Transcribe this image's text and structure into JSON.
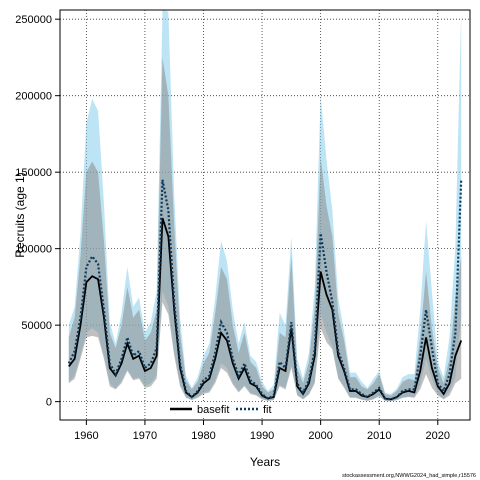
{
  "chart_data": {
    "type": "line",
    "title": "",
    "xlabel": "Years",
    "ylabel": "Recruits (age 1)",
    "xlim": [
      1955.5,
      2025.5
    ],
    "ylim": [
      -12000,
      256000
    ],
    "x_ticks": [
      1960,
      1970,
      1980,
      1990,
      2000,
      2010,
      2020
    ],
    "y_ticks": [
      0,
      50000,
      100000,
      150000,
      200000,
      250000
    ],
    "grid": true,
    "grid_style": "dotted",
    "legend_position": "bottom-center",
    "legend": [
      "basefit",
      "fit"
    ],
    "caption": "stockassessment.org,NWWG2024_had_simple,r15576",
    "colors": {
      "basefit_line": "#000000",
      "basefit_band": "#8c8c8c",
      "fit_line": "#0d3a5c",
      "fit_band": "#87ceeb"
    },
    "x": [
      1957,
      1958,
      1959,
      1960,
      1961,
      1962,
      1963,
      1964,
      1965,
      1966,
      1967,
      1968,
      1969,
      1970,
      1971,
      1972,
      1973,
      1974,
      1975,
      1976,
      1977,
      1978,
      1979,
      1980,
      1981,
      1982,
      1983,
      1984,
      1985,
      1986,
      1987,
      1988,
      1989,
      1990,
      1991,
      1992,
      1993,
      1994,
      1995,
      1996,
      1997,
      1998,
      1999,
      2000,
      2001,
      2002,
      2003,
      2004,
      2005,
      2006,
      2007,
      2008,
      2009,
      2010,
      2011,
      2012,
      2013,
      2014,
      2015,
      2016,
      2017,
      2018,
      2019,
      2020,
      2021,
      2022,
      2023,
      2024
    ],
    "series": [
      {
        "name": "basefit",
        "values": [
          23000,
          28000,
          50000,
          78000,
          82000,
          80000,
          55000,
          22000,
          17000,
          25000,
          38000,
          28000,
          30000,
          20000,
          22000,
          30000,
          120000,
          108000,
          60000,
          22000,
          6000,
          3000,
          6000,
          12000,
          15000,
          28000,
          45000,
          40000,
          25000,
          15000,
          22000,
          12000,
          10000,
          4000,
          2000,
          3000,
          22000,
          20000,
          48000,
          10000,
          5000,
          12000,
          30000,
          85000,
          70000,
          60000,
          30000,
          20000,
          7000,
          7000,
          4000,
          3000,
          5000,
          8000,
          2000,
          1500,
          3000,
          6000,
          7000,
          6000,
          20000,
          42000,
          22000,
          10000,
          5000,
          12000,
          30000,
          40000
        ],
        "lower": [
          12000,
          15000,
          28000,
          42000,
          43000,
          42000,
          28000,
          10000,
          8000,
          12000,
          20000,
          14000,
          15000,
          9000,
          10000,
          15000,
          65000,
          57000,
          30000,
          10000,
          2500,
          1000,
          2500,
          5000,
          6000,
          12000,
          22000,
          19000,
          11000,
          6000,
          10000,
          5000,
          4000,
          1500,
          500,
          1000,
          10000,
          8000,
          22000,
          4000,
          1500,
          4500,
          12000,
          48000,
          39000,
          34000,
          15000,
          9000,
          2500,
          2500,
          1200,
          500,
          1500,
          3500,
          500,
          200,
          1000,
          2500,
          3000,
          2500,
          8000,
          18000,
          9000,
          4000,
          1500,
          4000,
          12000,
          15000
        ],
        "upper": [
          42000,
          55000,
          95000,
          150000,
          157000,
          150000,
          105000,
          45000,
          35000,
          50000,
          75000,
          55000,
          60000,
          40000,
          45000,
          60000,
          225000,
          200000,
          115000,
          45000,
          14000,
          8000,
          13000,
          25000,
          32000,
          58000,
          88000,
          80000,
          50000,
          32000,
          45000,
          26000,
          22000,
          10000,
          6000,
          8000,
          45000,
          42000,
          95000,
          22000,
          12000,
          26000,
          62000,
          160000,
          128000,
          108000,
          58000,
          40000,
          16000,
          16000,
          10000,
          8000,
          12000,
          18000,
          5000,
          4000,
          7000,
          13000,
          15000,
          14000,
          42000,
          85000,
          48000,
          22000,
          12000,
          28000,
          68000,
          95000
        ]
      },
      {
        "name": "fit",
        "values": [
          25000,
          33000,
          55000,
          88000,
          95000,
          90000,
          60000,
          25000,
          18000,
          28000,
          42000,
          30000,
          33000,
          22000,
          25000,
          35000,
          145000,
          125000,
          65000,
          25000,
          7000,
          3000,
          7000,
          14000,
          17000,
          32000,
          52000,
          45000,
          28000,
          17000,
          25000,
          14000,
          11000,
          5000,
          2000,
          4000,
          26000,
          22000,
          52000,
          12000,
          6000,
          14000,
          34000,
          110000,
          85000,
          65000,
          33000,
          22000,
          8000,
          8000,
          5000,
          3000,
          6000,
          9000,
          2000,
          1500,
          3000,
          7000,
          8000,
          8000,
          30000,
          60000,
          35000,
          12000,
          7000,
          18000,
          45000,
          145000
        ],
        "lower": [
          13000,
          17000,
          30000,
          45000,
          48000,
          45000,
          30000,
          12000,
          8500,
          13500,
          21000,
          15000,
          16000,
          10000,
          12000,
          17000,
          72000,
          62000,
          32000,
          11000,
          3000,
          1200,
          3000,
          6000,
          7000,
          14000,
          25000,
          22000,
          12500,
          7000,
          11000,
          6000,
          4500,
          1800,
          600,
          1200,
          11000,
          9000,
          24000,
          4500,
          1800,
          5000,
          13000,
          58000,
          45000,
          36000,
          16000,
          10000,
          3000,
          3000,
          1500,
          600,
          1800,
          3800,
          500,
          250,
          1000,
          2800,
          3200,
          3000,
          11000,
          28000,
          15000,
          4500,
          2200,
          6500,
          16000,
          55000
        ],
        "upper": [
          50000,
          62000,
          110000,
          182000,
          198000,
          190000,
          130000,
          52000,
          38000,
          58000,
          88000,
          62000,
          68000,
          45000,
          52000,
          72000,
          285000,
          255000,
          135000,
          55000,
          17000,
          9000,
          16000,
          30000,
          38000,
          68000,
          105000,
          92000,
          60000,
          38000,
          52000,
          30000,
          26000,
          13000,
          7000,
          11000,
          58000,
          50000,
          108000,
          28000,
          15000,
          32000,
          75000,
          200000,
          158000,
          125000,
          68000,
          46000,
          19000,
          19000,
          13000,
          9000,
          15000,
          20000,
          6000,
          5000,
          8500,
          16000,
          18000,
          18000,
          60000,
          118000,
          72000,
          26000,
          16000,
          42000,
          102000,
          320000
        ]
      }
    ]
  }
}
